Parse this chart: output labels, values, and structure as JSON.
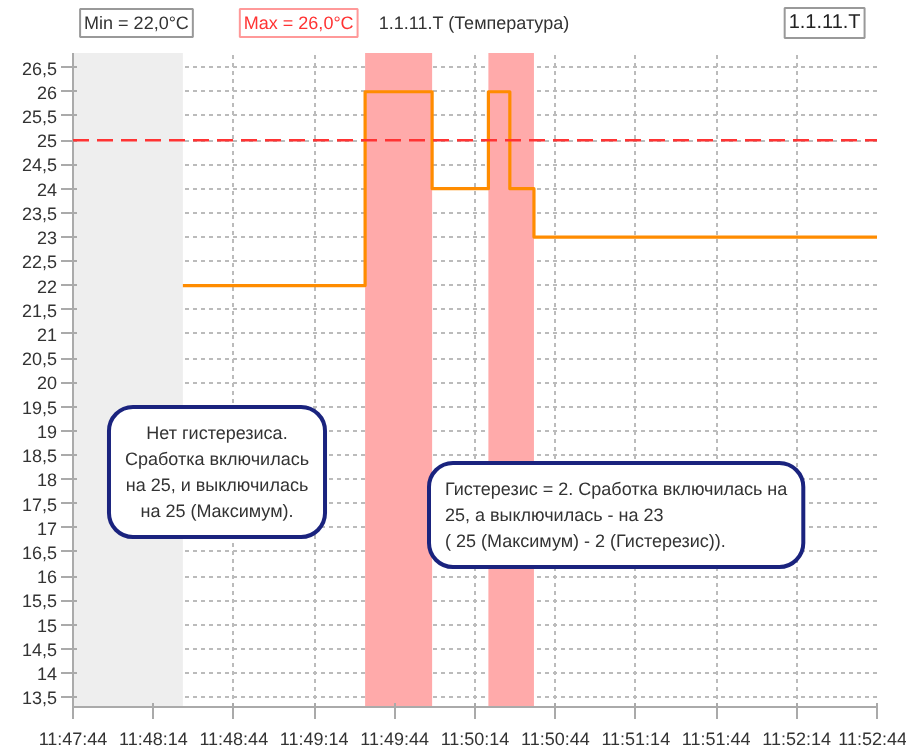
{
  "chart_data": {
    "type": "step",
    "title": "1.1.11.T (Температура)",
    "annotations": [
      "Min = 22,0°C",
      "Max = 26,0°C",
      "1.1.11.T",
      "Нет гистерезиса.\nСработка включилась\nна 25, и выключилась\nна 25 (Максимум).",
      "Гистерезис = 2. Сработка включилась на\n25, а выключилась - на 23\n( 25 (Максимум) - 2 (Гистерезис))."
    ],
    "x": [
      11.806944,
      11.825833,
      11.832778,
      11.838611,
      11.840833,
      11.843333,
      11.878889
    ],
    "series": [
      {
        "color": "#ff8c00",
        "values": [
          22,
          26,
          24,
          26,
          24,
          23,
          23
        ]
      }
    ],
    "xlim": [
      11.795556,
      11.878889
    ],
    "xticks": [
      {
        "value": 11.795556,
        "label": "11:47:44"
      },
      {
        "value": 11.803889,
        "label": "11:48:14"
      },
      {
        "value": 11.812222,
        "label": "11:48:44"
      },
      {
        "value": 11.820556,
        "label": "11:49:14"
      },
      {
        "value": 11.828889,
        "label": "11:49:44"
      },
      {
        "value": 11.837222,
        "label": "11:50:14"
      },
      {
        "value": 11.845556,
        "label": "11:50:44"
      },
      {
        "value": 11.853889,
        "label": "11:51:14"
      },
      {
        "value": 11.862222,
        "label": "11:51:44"
      },
      {
        "value": 11.870556,
        "label": "11:52:14"
      },
      {
        "value": 11.878889,
        "label": "11:52:44"
      }
    ],
    "ylim": [
      13.3,
      26.8
    ],
    "yticks": [
      {
        "value": 13.5,
        "label": "13,5"
      },
      14,
      {
        "value": 14.5,
        "label": "14,5"
      },
      15,
      {
        "value": 15.5,
        "label": "15,5"
      },
      16,
      {
        "value": 16.5,
        "label": "16,5"
      },
      17,
      {
        "value": 17.5,
        "label": "17,5"
      },
      18,
      {
        "value": 18.5,
        "label": "18,5"
      },
      19,
      {
        "value": 19.5,
        "label": "19,5"
      },
      20,
      {
        "value": 20.5,
        "label": "20,5"
      },
      21,
      {
        "value": 21.5,
        "label": "21,5"
      },
      22,
      {
        "value": 22.5,
        "label": "22,5"
      },
      23,
      {
        "value": 23.5,
        "label": "23,5"
      },
      24,
      {
        "value": 24.5,
        "label": "24,5"
      },
      25,
      {
        "value": 25.5,
        "label": "25,5"
      },
      26,
      {
        "value": 26.5,
        "label": "26,5"
      }
    ],
    "ref_lines": [
      {
        "axis": "y",
        "value": 25,
        "color": "#ff3333",
        "line_style": "dashed"
      }
    ],
    "bands": [
      {
        "axis": "x",
        "from": 11.795556,
        "to": 11.806944,
        "color": "#eeeeee"
      },
      {
        "axis": "x",
        "from": 11.825833,
        "to": 11.832778,
        "color": "#ffaaaa"
      },
      {
        "axis": "x",
        "from": 11.838611,
        "to": 11.843333,
        "color": "#ffaaaa"
      }
    ],
    "grid": true
  }
}
